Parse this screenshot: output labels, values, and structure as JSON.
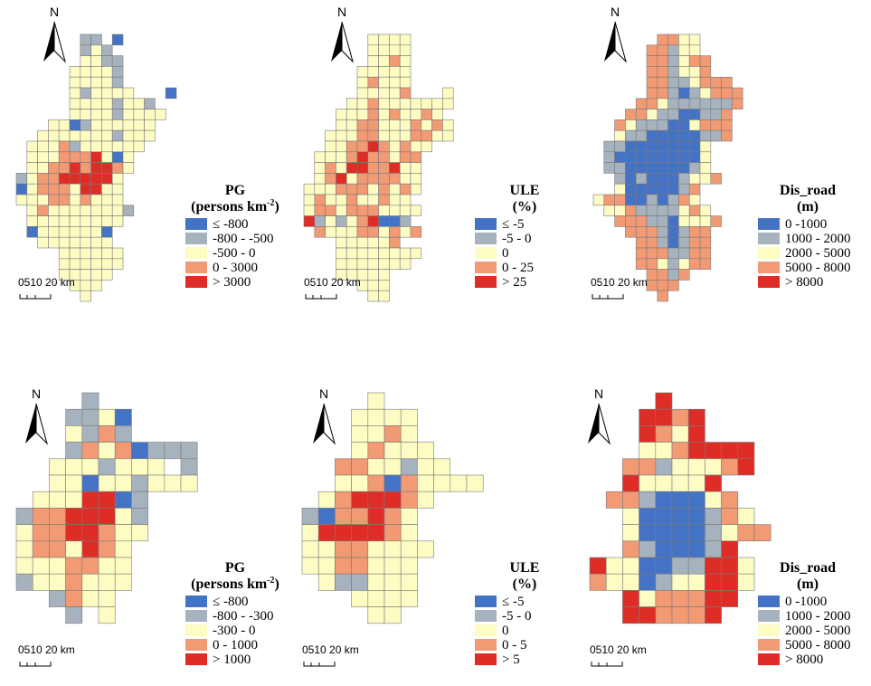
{
  "colors": {
    "c1": "#4472c4",
    "c2": "#a6b2bd",
    "c3": "#fdfcc3",
    "c4": "#f19a74",
    "c5": "#de2d26",
    "grid_line": "#7b7b7b"
  },
  "north_label": "N",
  "scale_label": "0510 20 km",
  "panels": [
    {
      "id": "pg-fine",
      "title_lines": [
        "PG",
        "(persons km-2)"
      ],
      "legend": [
        "≤ -800",
        "-800 - -500",
        "-500 - 0",
        "0 - 3000",
        "> 3000"
      ],
      "grid_rows": [
        "......22.1.....",
        "......232......",
        "......3322.....",
        ".....33332.....",
        ".....33332.....",
        ".....323333...1",
        ".....33332332..",
        ".....333323333.",
        "...3312333333..",
        "..33333332333..",
        ".33342333333...",
        ".3334445313....",
        ".3344545543....",
        "2344555553.....",
        "1344435533.....",
        "3334434333.....",
        ".3433333332....",
        ".333333333.....",
        ".13333331......",
        "..3333333......",
        "....333333.....",
        "....333333.....",
        "....33333......",
        ".....333.......",
        "......3........"
      ]
    },
    {
      "id": "ule-fine",
      "title_lines": [
        "ULE",
        "(%)"
      ],
      "legend": [
        "≤ -5",
        "-5 - 0",
        "0",
        "0 - 25",
        "> 25"
      ],
      "grid_rows": [
        "......3333.....",
        "......3333.....",
        "......3343.....",
        ".....33333.....",
        ".....34333.....",
        ".....33334...3.",
        "....3343333333.",
        "...3334343343..",
        "...33443334343.",
        "..333443334433.",
        "..3344543433...",
        ".3334544344....",
        ".3435544533....",
        ".3453444433....",
        "33344434343....",
        "3433433433.....",
        "34434443333....",
        "5232345112.....",
        ".4333443434....",
        "...333334......",
        "...33333333....",
        "...3333333.....",
        "...33333.......",
        ".....333.......",
        "......33......."
      ]
    },
    {
      "id": "dis-fine",
      "title_lines": [
        "Dis_road",
        "(m)"
      ],
      "legend": [
        "0 -1000",
        "1000 - 2000",
        "2000 - 5000",
        "5000 - 8000",
        "> 8000"
      ],
      "grid_rows": [
        "......4433.....",
        ".....44233.....",
        ".....442344....",
        ".....442334....",
        ".....44223444..",
        ".....442123444.",
        "....4432222224.",
        "...4432211224..",
        "..43222113444..",
        "..32211111224..",
        ".2211111113....",
        ".2111111113....",
        ".2211111123....",
        "..2121112334...",
        "..31111124.....",
        "3441121243.....",
        ".3342222343....",
        "..4442213334...",
        "...44421244....",
        "....4421244....",
        "....4442244....",
        "....4432344....",
        ".....4424......",
        ".....444.......",
        "......4........"
      ]
    },
    {
      "id": "pg-coarse",
      "title_lines": [
        "PG",
        "(persons km-2)"
      ],
      "legend": [
        "≤ -800",
        "-800 - -300",
        "-300 - 0",
        "0 - 1000",
        "> 1000"
      ],
      "grid_rows": [
        "....2......",
        "...2231....",
        "...3242....",
        "...24341222",
        "..3332333.2",
        "..331332333",
        ".3335512...",
        "24455532...",
        "34455433...",
        "3443543....",
        "3334433....",
        "2334333....",
        "..2433.....",
        "...2.3....."
      ]
    },
    {
      "id": "ule-coarse",
      "title_lines": [
        "ULE",
        "(%)"
      ],
      "legend": [
        "≤ -5",
        "-5 - 0",
        "0",
        "0 - 5",
        "> 5"
      ],
      "grid_rows": [
        "....3......",
        "...3333....",
        "...3343....",
        "...34333...",
        "..4433233..",
        "..334143333",
        ".3455543...",
        "2144543....",
        "3555543....",
        "33443333...",
        "3344333....",
        ".322333....",
        "...3333....",
        "....33....."
      ]
    },
    {
      "id": "dis-coarse",
      "title_lines": [
        "Dis_road",
        "(m)"
      ],
      "legend": [
        "0 -1000",
        "1000 - 2000",
        "2000 - 5000",
        "5000 - 8000",
        "> 8000"
      ],
      "grid_rows": [
        "....5......",
        "...5545....",
        "...5435....",
        "...3345555.",
        "..44233345.",
        "..533335...",
        ".44211134..",
        "..31111243.",
        "..311112344",
        "..4211125..",
        "5331122553.",
        "4331233553.",
        "..5344455..",
        "..554445..."
      ]
    }
  ]
}
